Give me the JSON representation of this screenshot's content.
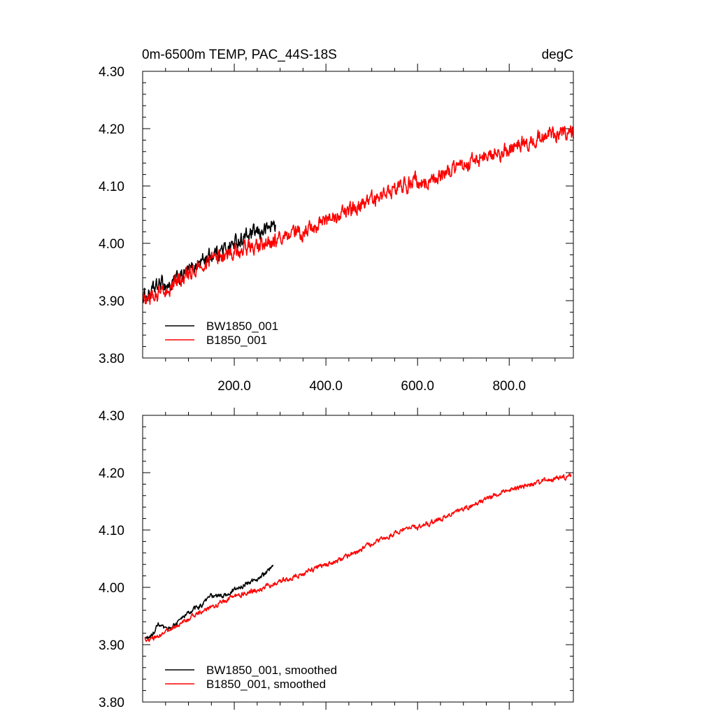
{
  "chart_data": [
    {
      "type": "line",
      "title_left": "0m-6500m TEMP, PAC_44S-18S",
      "title_right": "degC",
      "xlim": [
        0,
        940
      ],
      "ylim": [
        3.8,
        4.3
      ],
      "x_ticks": [
        200,
        400,
        600,
        800
      ],
      "x_tick_labels": [
        "200.0",
        "400.0",
        "600.0",
        "800.0"
      ],
      "y_ticks": [
        3.8,
        3.9,
        4.0,
        4.1,
        4.2,
        4.3
      ],
      "y_tick_labels": [
        "3.80",
        "3.90",
        "4.00",
        "4.10",
        "4.20",
        "4.30"
      ],
      "legend_position": "bottom-left",
      "noise": 0.011,
      "series": [
        {
          "name": "BW1850_001",
          "color": "#000000",
          "x_range": [
            1,
            290
          ],
          "anchors": [
            [
              1,
              3.905
            ],
            [
              20,
              3.915
            ],
            [
              40,
              3.93
            ],
            [
              60,
              3.925
            ],
            [
              80,
              3.94
            ],
            [
              100,
              3.95
            ],
            [
              120,
              3.965
            ],
            [
              140,
              3.975
            ],
            [
              160,
              3.985
            ],
            [
              180,
              3.99
            ],
            [
              200,
              4.0
            ],
            [
              220,
              4.01
            ],
            [
              240,
              4.015
            ],
            [
              260,
              4.02
            ],
            [
              280,
              4.03
            ],
            [
              290,
              4.035
            ]
          ]
        },
        {
          "name": "B1850_001",
          "color": "#ff0000",
          "x_range": [
            1,
            940
          ],
          "anchors": [
            [
              1,
              3.905
            ],
            [
              30,
              3.91
            ],
            [
              60,
              3.925
            ],
            [
              100,
              3.945
            ],
            [
              150,
              3.97
            ],
            [
              200,
              3.985
            ],
            [
              250,
              3.995
            ],
            [
              300,
              4.005
            ],
            [
              350,
              4.02
            ],
            [
              400,
              4.04
            ],
            [
              450,
              4.055
            ],
            [
              500,
              4.075
            ],
            [
              550,
              4.095
            ],
            [
              600,
              4.11
            ],
            [
              620,
              4.105
            ],
            [
              650,
              4.12
            ],
            [
              700,
              4.135
            ],
            [
              750,
              4.15
            ],
            [
              800,
              4.165
            ],
            [
              850,
              4.18
            ],
            [
              900,
              4.19
            ],
            [
              940,
              4.195
            ]
          ]
        }
      ]
    },
    {
      "type": "line",
      "xlim": [
        0,
        940
      ],
      "ylim": [
        3.8,
        4.3
      ],
      "x_ticks": [
        200,
        400,
        600,
        800
      ],
      "y_ticks": [
        3.8,
        3.9,
        4.0,
        4.1,
        4.2,
        4.3
      ],
      "y_tick_labels": [
        "3.80",
        "3.90",
        "4.00",
        "4.10",
        "4.20",
        "4.30"
      ],
      "legend_position": "bottom-left",
      "noise": 0.0035,
      "series": [
        {
          "name": "BW1850_001, smoothed",
          "color": "#000000",
          "x_range": [
            5,
            285
          ],
          "anchors": [
            [
              5,
              3.91
            ],
            [
              20,
              3.915
            ],
            [
              35,
              3.935
            ],
            [
              50,
              3.925
            ],
            [
              70,
              3.935
            ],
            [
              100,
              3.955
            ],
            [
              130,
              3.97
            ],
            [
              150,
              3.985
            ],
            [
              175,
              3.985
            ],
            [
              200,
              3.995
            ],
            [
              225,
              4.005
            ],
            [
              250,
              4.015
            ],
            [
              270,
              4.025
            ],
            [
              285,
              4.035
            ]
          ]
        },
        {
          "name": "B1850_001, smoothed",
          "color": "#ff0000",
          "x_range": [
            5,
            935
          ],
          "anchors": [
            [
              5,
              3.91
            ],
            [
              15,
              3.905
            ],
            [
              30,
              3.915
            ],
            [
              60,
              3.925
            ],
            [
              100,
              3.945
            ],
            [
              150,
              3.965
            ],
            [
              200,
              3.985
            ],
            [
              250,
              3.995
            ],
            [
              300,
              4.01
            ],
            [
              350,
              4.025
            ],
            [
              400,
              4.04
            ],
            [
              450,
              4.055
            ],
            [
              500,
              4.075
            ],
            [
              550,
              4.095
            ],
            [
              580,
              4.105
            ],
            [
              600,
              4.105
            ],
            [
              620,
              4.11
            ],
            [
              650,
              4.12
            ],
            [
              700,
              4.135
            ],
            [
              750,
              4.155
            ],
            [
              800,
              4.17
            ],
            [
              850,
              4.18
            ],
            [
              900,
              4.19
            ],
            [
              935,
              4.195
            ]
          ]
        }
      ]
    }
  ]
}
